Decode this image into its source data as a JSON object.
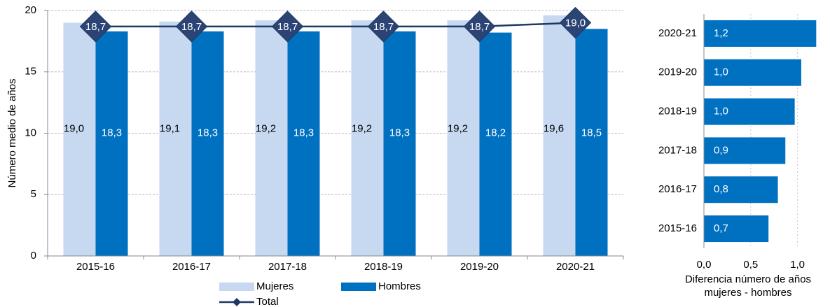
{
  "chart_data": [
    {
      "type": "bar-line",
      "ylabel": "Número medio de años",
      "categories": [
        "2015-16",
        "2016-17",
        "2017-18",
        "2018-19",
        "2019-20",
        "2020-21"
      ],
      "series": [
        {
          "name": "Mujeres",
          "color": "#c6d9f1",
          "values": [
            19.0,
            19.1,
            19.2,
            19.2,
            19.2,
            19.6
          ],
          "value_labels": [
            "19,0",
            "19,1",
            "19,2",
            "19,2",
            "19,2",
            "19,6"
          ]
        },
        {
          "name": "Hombres",
          "color": "#0070c0",
          "values": [
            18.3,
            18.3,
            18.3,
            18.3,
            18.2,
            18.5
          ],
          "value_labels": [
            "18,3",
            "18,3",
            "18,3",
            "18,3",
            "18,2",
            "18,5"
          ]
        },
        {
          "name": "Total",
          "type": "line",
          "color": "#1f3864",
          "values": [
            18.7,
            18.7,
            18.7,
            18.7,
            18.7,
            19.0
          ],
          "value_labels": [
            "18,7",
            "18,7",
            "18,7",
            "18,7",
            "18,7",
            "19,0"
          ]
        }
      ],
      "ylim": [
        0,
        20
      ],
      "yticks": [
        0,
        5,
        10,
        15,
        20
      ],
      "grid": true,
      "legend": "bottom"
    },
    {
      "type": "hbar",
      "xlabel": [
        "Diferencia número de años",
        "mujeres - hombres"
      ],
      "categories": [
        "2020-21",
        "2019-20",
        "2018-19",
        "2017-18",
        "2016-17",
        "2015-16"
      ],
      "values": [
        1.2,
        1.04,
        0.97,
        0.87,
        0.79,
        0.69
      ],
      "value_labels": [
        "1,2",
        "1,0",
        "1,0",
        "0,9",
        "0,8",
        "0,7"
      ],
      "color": "#0070c0",
      "xlim": [
        0,
        1.22
      ],
      "xticks": [
        {
          "value": 0,
          "label": "0,0"
        },
        {
          "value": 0.5,
          "label": "0,5"
        },
        {
          "value": 1,
          "label": "1,0"
        }
      ],
      "grid": true
    }
  ]
}
